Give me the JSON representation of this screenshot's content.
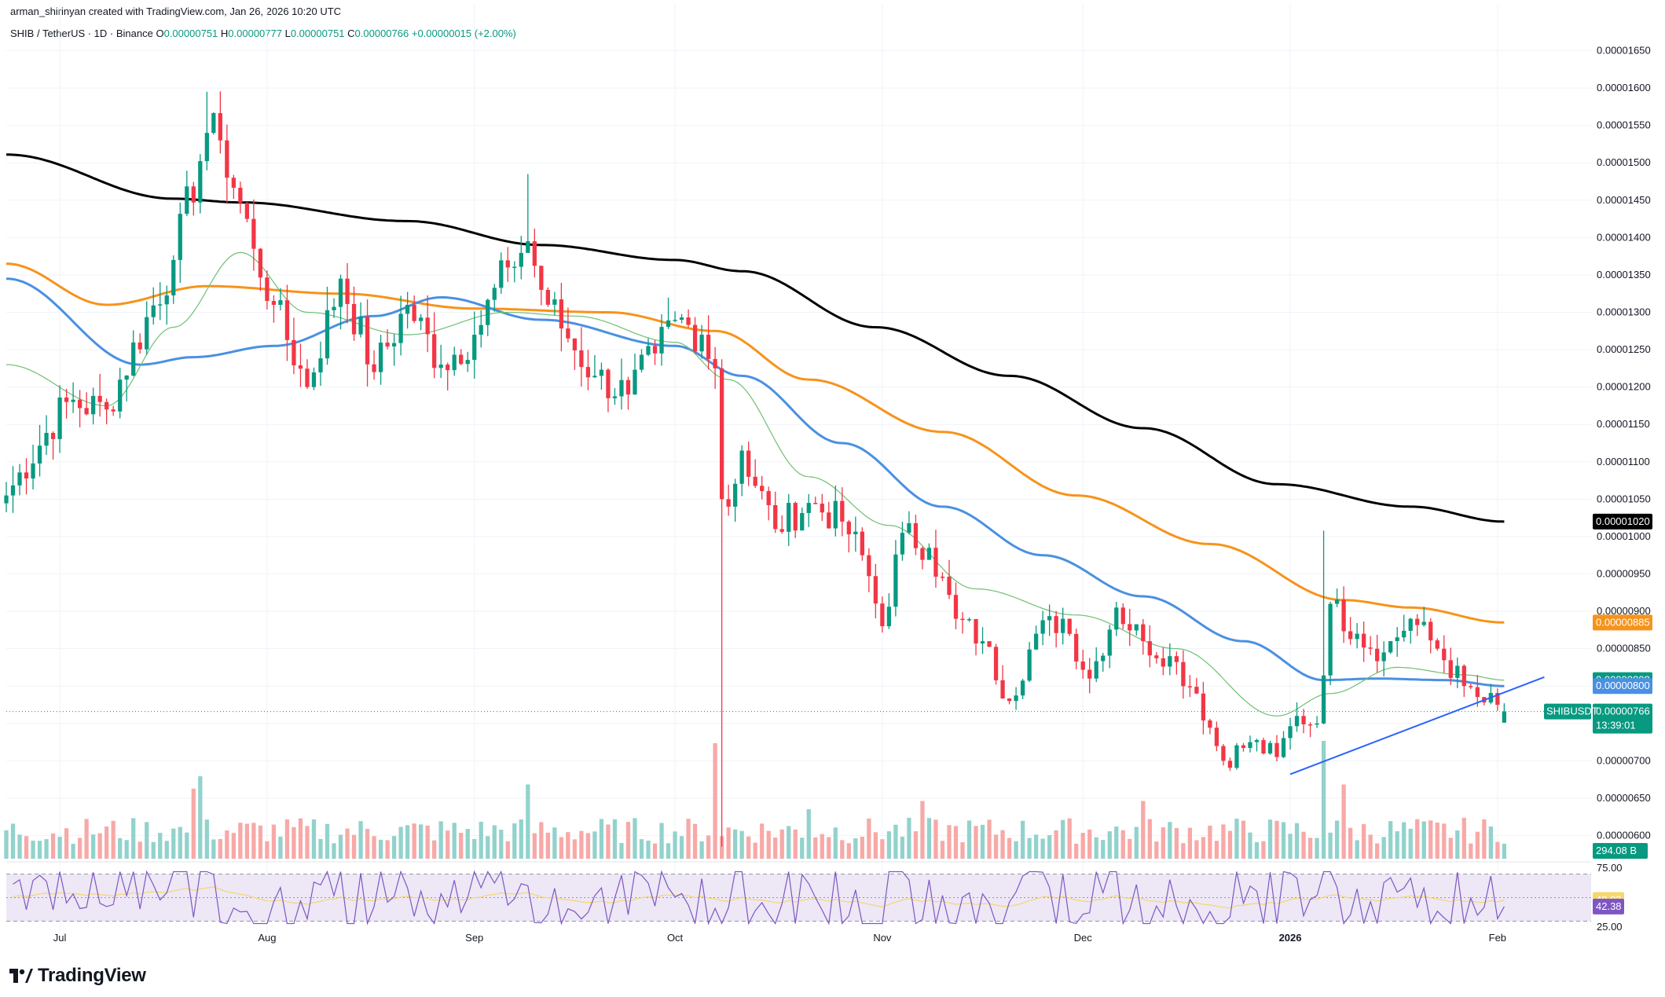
{
  "attribution": "arman_shirinyan created with TradingView.com, Jan 26, 2026 10:20 UTC",
  "legend": {
    "symbol": "SHIB / TetherUS · 1D · Binance",
    "open_label": "O",
    "open": "0.00000751",
    "high_label": "H",
    "high": "0.00000777",
    "low_label": "L",
    "low": "0.00000751",
    "close_label": "C",
    "close": "0.00000766",
    "change": "+0.00000015 (+2.00%)"
  },
  "brand": {
    "name": "TradingView"
  },
  "colors": {
    "up": "#089981",
    "down": "#f23645",
    "up_volume": "#92d2cc",
    "down_volume": "#f7a9a7",
    "sma200": "#000000",
    "sma100": "#f7931a",
    "sma50": "#4a90e2",
    "sma20": "#6fbf73",
    "rsi": "#7e57c2",
    "rsi_ma": "#f5d76e",
    "rsi_band": "#ede7f6",
    "grid": "#f0f3fa",
    "trendline": "#2962ff"
  },
  "chart_data": {
    "type": "candlestick",
    "x_ticks": [
      "Jul",
      "Aug",
      "Sep",
      "Oct",
      "Nov",
      "Dec",
      "2026",
      "Feb"
    ],
    "x_tick_dates": [
      "2025-07-01",
      "2025-08-01",
      "2025-09-01",
      "2025-10-01",
      "2025-11-01",
      "2025-12-01",
      "2026-01-01",
      "2026-02-01"
    ],
    "x_range": [
      "2025-06-23",
      "2026-02-15"
    ],
    "y_ticks": [
      "0.00001650",
      "0.00001600",
      "0.00001550",
      "0.00001500",
      "0.00001450",
      "0.00001400",
      "0.00001350",
      "0.00001300",
      "0.00001250",
      "0.00001200",
      "0.00001150",
      "0.00001100",
      "0.00001050",
      "0.00001000",
      "0.00000950",
      "0.00000900",
      "0.00000850",
      "0.00000800",
      "0.00000750",
      "0.00000700",
      "0.00000650",
      "0.00000600"
    ],
    "ylim": [
      5.69e-06,
      1.681e-05
    ],
    "price_path": {
      "start_date": "2025-06-23",
      "end_date": "2026-01-26",
      "anchors": [
        [
          0,
          1.055e-05
        ],
        [
          9,
          1.18e-05
        ],
        [
          15,
          1.17e-05
        ],
        [
          25,
          1.37e-05
        ],
        [
          30,
          1.54e-05
        ],
        [
          32,
          1.53e-05
        ],
        [
          37,
          1.385e-05
        ],
        [
          40,
          1.31e-05
        ],
        [
          45,
          1.2e-05
        ],
        [
          50,
          1.345e-05
        ],
        [
          55,
          1.22e-05
        ],
        [
          60,
          1.31e-05
        ],
        [
          65,
          1.23e-05
        ],
        [
          70,
          1.27e-05
        ],
        [
          75,
          1.36e-05
        ],
        [
          78,
          1.395e-05
        ],
        [
          80,
          1.33e-05
        ],
        [
          84,
          1.265e-05
        ],
        [
          88,
          1.215e-05
        ],
        [
          93,
          1.19e-05
        ],
        [
          97,
          1.245e-05
        ],
        [
          100,
          1.29e-05
        ],
        [
          104,
          1.27e-05
        ],
        [
          106,
          1.225e-05
        ],
        [
          107,
          1.05e-05
        ],
        [
          108,
          1.04e-05
        ],
        [
          110,
          1.115e-05
        ],
        [
          115,
          1.01e-05
        ],
        [
          120,
          1.045e-05
        ],
        [
          125,
          1.02e-05
        ],
        [
          128,
          9.75e-06
        ],
        [
          131,
          8.8e-06
        ],
        [
          134,
          1.005e-05
        ],
        [
          138,
          9.85e-06
        ],
        [
          142,
          8.9e-06
        ],
        [
          146,
          8.6e-06
        ],
        [
          150,
          7.8e-06
        ],
        [
          154,
          8.7e-06
        ],
        [
          158,
          8.9e-06
        ],
        [
          162,
          8.1e-06
        ],
        [
          166,
          9.05e-06
        ],
        [
          170,
          8.6e-06
        ],
        [
          174,
          8.4e-06
        ],
        [
          178,
          7.9e-06
        ],
        [
          182,
          7e-06
        ],
        [
          186,
          7.25e-06
        ],
        [
          190,
          7.05e-06
        ],
        [
          193,
          7.6e-06
        ],
        [
          196,
          7.5e-06
        ],
        [
          198,
          9.1e-06
        ],
        [
          202,
          8.7e-06
        ],
        [
          206,
          8.45e-06
        ],
        [
          210,
          8.9e-06
        ],
        [
          214,
          8.5e-06
        ],
        [
          218,
          8e-06
        ],
        [
          221,
          7.78e-06
        ],
        [
          223,
          7.75e-06
        ],
        [
          224,
          7.51e-06
        ]
      ],
      "last": {
        "open": 7.51e-06,
        "high": 7.77e-06,
        "low": 7.51e-06,
        "close": 7.66e-06
      }
    },
    "moving_averages": [
      {
        "id": "sma200",
        "color": "#000000",
        "points": [
          [
            0,
            1.511e-05
          ],
          [
            25,
            1.452e-05
          ],
          [
            35,
            1.447e-05
          ],
          [
            60,
            1.422e-05
          ],
          [
            80,
            1.39e-05
          ],
          [
            100,
            1.37e-05
          ],
          [
            110,
            1.355e-05
          ],
          [
            130,
            1.28e-05
          ],
          [
            150,
            1.215e-05
          ],
          [
            170,
            1.145e-05
          ],
          [
            190,
            1.07e-05
          ],
          [
            210,
            1.04e-05
          ],
          [
            224,
            1.02e-05
          ]
        ]
      },
      {
        "id": "sma100",
        "color": "#f7931a",
        "points": [
          [
            0,
            1.365e-05
          ],
          [
            15,
            1.31e-05
          ],
          [
            30,
            1.335e-05
          ],
          [
            50,
            1.325e-05
          ],
          [
            70,
            1.305e-05
          ],
          [
            90,
            1.3e-05
          ],
          [
            106,
            1.275e-05
          ],
          [
            120,
            1.21e-05
          ],
          [
            140,
            1.14e-05
          ],
          [
            160,
            1.055e-05
          ],
          [
            180,
            9.9e-06
          ],
          [
            200,
            9.15e-06
          ],
          [
            210,
            9.05e-06
          ],
          [
            224,
            8.85e-06
          ]
        ]
      },
      {
        "id": "sma50",
        "color": "#4a90e2",
        "points": [
          [
            0,
            1.345e-05
          ],
          [
            20,
            1.23e-05
          ],
          [
            28,
            1.24e-05
          ],
          [
            40,
            1.255e-05
          ],
          [
            55,
            1.295e-05
          ],
          [
            65,
            1.32e-05
          ],
          [
            80,
            1.29e-05
          ],
          [
            100,
            1.255e-05
          ],
          [
            110,
            1.215e-05
          ],
          [
            125,
            1.125e-05
          ],
          [
            140,
            1.04e-05
          ],
          [
            155,
            9.75e-06
          ],
          [
            170,
            9.2e-06
          ],
          [
            185,
            8.6e-06
          ],
          [
            197,
            8.08e-06
          ],
          [
            205,
            8.1e-06
          ],
          [
            215,
            8.08e-06
          ],
          [
            224,
            8e-06
          ]
        ]
      },
      {
        "id": "sma20",
        "color": "#6fbf73",
        "points": [
          [
            0,
            1.23e-05
          ],
          [
            15,
            1.175e-05
          ],
          [
            25,
            1.28e-05
          ],
          [
            35,
            1.38e-05
          ],
          [
            45,
            1.3e-05
          ],
          [
            60,
            1.27e-05
          ],
          [
            75,
            1.3e-05
          ],
          [
            85,
            1.295e-05
          ],
          [
            100,
            1.26e-05
          ],
          [
            108,
            1.21e-05
          ],
          [
            120,
            1.08e-05
          ],
          [
            132,
            1.015e-05
          ],
          [
            145,
            9.3e-06
          ],
          [
            160,
            8.95e-06
          ],
          [
            175,
            8.5e-06
          ],
          [
            190,
            7.6e-06
          ],
          [
            198,
            7.9e-06
          ],
          [
            208,
            8.25e-06
          ],
          [
            218,
            8.15e-06
          ],
          [
            224,
            8.08e-06
          ]
        ]
      }
    ],
    "trendline": {
      "from": [
        192,
        6.82e-06
      ],
      "to": [
        230,
        8.12e-06
      ]
    },
    "volume_spikes": [
      [
        28,
        0.85
      ],
      [
        29,
        1.0
      ],
      [
        106,
        1.4
      ],
      [
        78,
        0.9
      ],
      [
        197,
        1.5
      ],
      [
        200,
        0.9
      ],
      [
        170,
        0.7
      ],
      [
        120,
        0.6
      ],
      [
        137,
        0.7
      ]
    ],
    "price_tags": [
      {
        "label": "",
        "value": "0.00001020",
        "y": 1.02e-05,
        "color": "#000000"
      },
      {
        "label": "",
        "value": "0.00000885",
        "y": 8.85e-06,
        "color": "#f7931a"
      },
      {
        "label": "",
        "value": "0.00000808",
        "y": 8.08e-06,
        "color": "#089981"
      },
      {
        "label": "",
        "value": "0.00000800",
        "y": 8e-06,
        "color": "#4a90e2"
      },
      {
        "label": "SHIBUSDT",
        "value": "0.00000766",
        "y": 7.66e-06,
        "color": "#089981",
        "countdown": "13:39:01"
      }
    ],
    "volume_tag": "294.08 B",
    "rsi": {
      "y_ticks": [
        "75.00",
        "25.00"
      ],
      "ylim": [
        25,
        75
      ],
      "value_rsi": "42.38",
      "value_rsi_ma": "48.02",
      "rsi_value": 42.38,
      "rsi_ma_value": 48.02,
      "upper": 70,
      "mid": 50,
      "lower": 30
    }
  }
}
